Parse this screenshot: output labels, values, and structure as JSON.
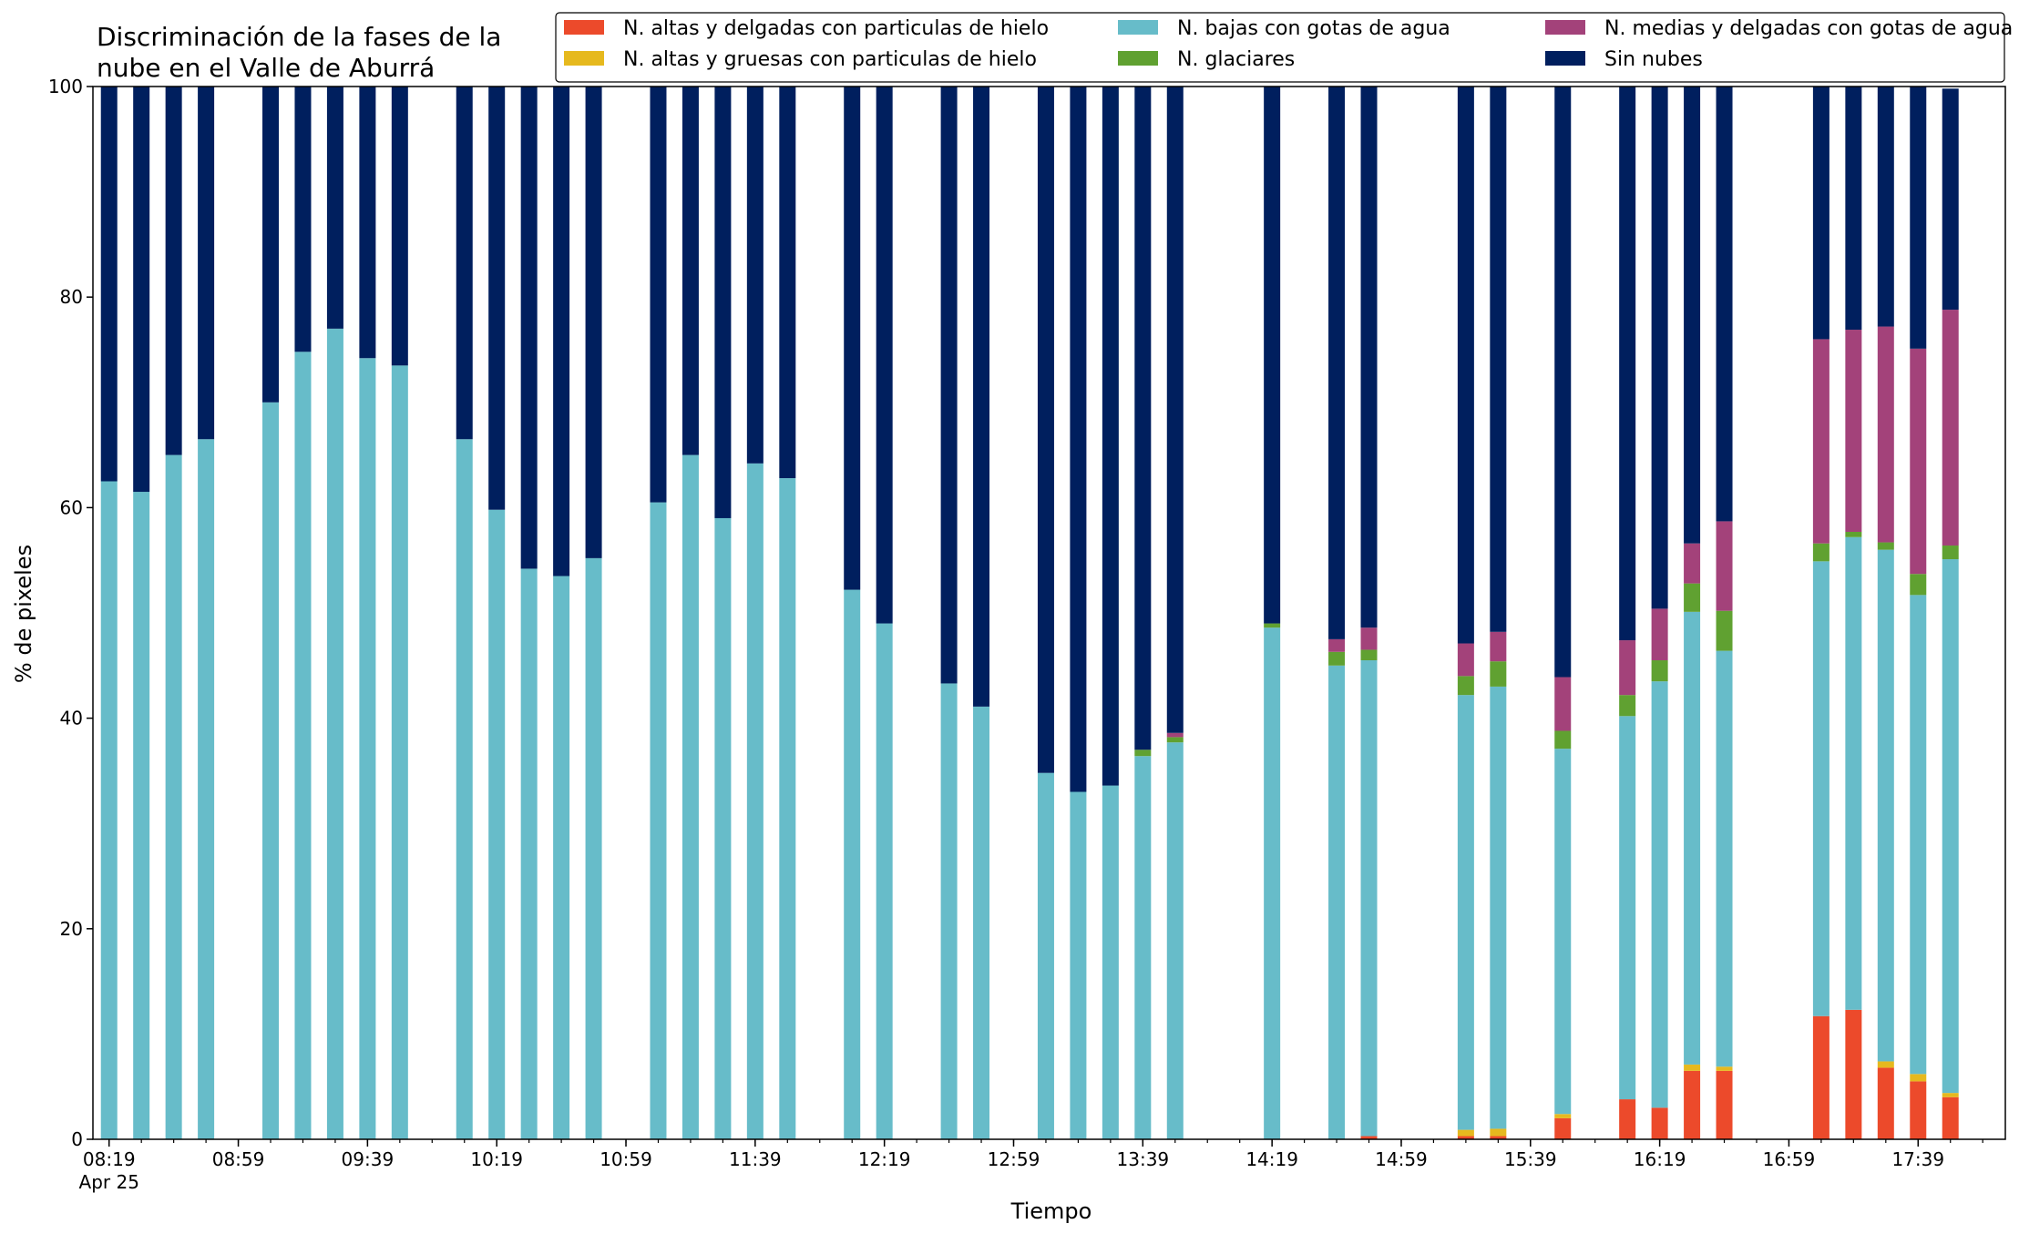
{
  "chart_data": {
    "type": "bar",
    "stacked": true,
    "title": [
      "Discriminación de la fases de la",
      "nube en el Valle de Aburrá"
    ],
    "xlabel": "Tiempo",
    "ylabel": "% de pixeles",
    "ylim": [
      0,
      100
    ],
    "yticks": [
      0,
      20,
      40,
      60,
      80,
      100
    ],
    "xlim_minutes": [
      -5,
      587
    ],
    "x_ticklabels": [
      {
        "minutes": 0,
        "label": "08:19",
        "sub": "Apr 25"
      },
      {
        "minutes": 40,
        "label": "08:59"
      },
      {
        "minutes": 80,
        "label": "09:39"
      },
      {
        "minutes": 120,
        "label": "10:19"
      },
      {
        "minutes": 160,
        "label": "10:59"
      },
      {
        "minutes": 200,
        "label": "11:39"
      },
      {
        "minutes": 240,
        "label": "12:19"
      },
      {
        "minutes": 280,
        "label": "12:59"
      },
      {
        "minutes": 320,
        "label": "13:39"
      },
      {
        "minutes": 360,
        "label": "14:19"
      },
      {
        "minutes": 400,
        "label": "14:59"
      },
      {
        "minutes": 440,
        "label": "15:39"
      },
      {
        "minutes": 480,
        "label": "16:19"
      },
      {
        "minutes": 520,
        "label": "16:59"
      },
      {
        "minutes": 560,
        "label": "17:39"
      }
    ],
    "minor_tick_step_minutes": 10,
    "grid": false,
    "legend_placement": "top-right",
    "x_times": [
      "08:19",
      "08:29",
      "08:39",
      "08:49",
      "09:09",
      "09:19",
      "09:29",
      "09:39",
      "09:49",
      "10:09",
      "10:19",
      "10:29",
      "10:39",
      "10:49",
      "11:09",
      "11:19",
      "11:29",
      "11:39",
      "11:49",
      "12:09",
      "12:19",
      "12:39",
      "12:49",
      "13:09",
      "13:19",
      "13:29",
      "13:39",
      "13:49",
      "14:19",
      "14:39",
      "14:49",
      "15:19",
      "15:29",
      "15:49",
      "16:09",
      "16:19",
      "16:29",
      "16:39",
      "17:09",
      "17:19",
      "17:29",
      "17:39",
      "17:49"
    ],
    "series": [
      {
        "name": "N. altas y delgadas con particulas de hielo",
        "color": "#ec4a2b",
        "values": [
          0,
          0,
          0,
          0,
          0,
          0,
          0,
          0,
          0,
          0,
          0,
          0,
          0,
          0,
          0,
          0,
          0,
          0,
          0,
          0,
          0,
          0,
          0,
          0,
          0,
          0,
          0,
          0,
          0,
          0,
          0.3,
          0.3,
          0.3,
          2.0,
          3.8,
          3.0,
          6.5,
          6.5,
          11.7,
          12.3,
          6.8,
          5.5,
          4.0
        ]
      },
      {
        "name": "N. altas y gruesas con particulas de hielo",
        "color": "#e6b91e",
        "values": [
          0,
          0,
          0,
          0,
          0,
          0,
          0,
          0,
          0,
          0,
          0,
          0,
          0,
          0,
          0,
          0,
          0,
          0,
          0,
          0,
          0,
          0,
          0,
          0,
          0,
          0,
          0,
          0,
          0,
          0,
          0,
          0.6,
          0.7,
          0.4,
          0,
          0,
          0.6,
          0.4,
          0,
          0,
          0.6,
          0.7,
          0.4
        ]
      },
      {
        "name": "N. bajas con gotas de agua",
        "color": "#67bcc9",
        "values": [
          62.5,
          61.5,
          65,
          66.5,
          70,
          74.8,
          77,
          74.2,
          73.5,
          66.5,
          59.8,
          54.2,
          53.5,
          55.2,
          60.5,
          65,
          59,
          64.2,
          62.8,
          52.2,
          49,
          43.3,
          41.1,
          34.8,
          33,
          33.6,
          36.4,
          37.7,
          48.6,
          45,
          45.2,
          41.3,
          42,
          34.7,
          36.4,
          40.5,
          43,
          39.5,
          43.2,
          44.9,
          48.6,
          45.5,
          50.7
        ]
      },
      {
        "name": "N. glaciares",
        "color": "#60a131",
        "values": [
          0,
          0,
          0,
          0,
          0,
          0,
          0,
          0,
          0,
          0,
          0,
          0,
          0,
          0,
          0,
          0,
          0,
          0,
          0,
          0,
          0,
          0,
          0,
          0,
          0,
          0,
          0.6,
          0.5,
          0.4,
          1.3,
          1.0,
          1.8,
          2.4,
          1.7,
          2.0,
          2.0,
          2.7,
          3.8,
          1.7,
          0.5,
          0.7,
          2.0,
          1.3
        ]
      },
      {
        "name": "N. medias y delgadas con gotas de agua",
        "color": "#a3427a",
        "values": [
          0,
          0,
          0,
          0,
          0,
          0,
          0,
          0,
          0,
          0,
          0,
          0,
          0,
          0,
          0,
          0,
          0,
          0,
          0,
          0,
          0,
          0,
          0,
          0,
          0,
          0,
          0,
          0.4,
          0,
          1.2,
          2.1,
          3.1,
          2.8,
          5.1,
          5.2,
          4.9,
          3.8,
          8.5,
          19.4,
          19.2,
          20.5,
          21.4,
          22.4
        ]
      },
      {
        "name": "Sin nubes",
        "color": "#001f5e",
        "values": [
          37.5,
          38.5,
          35,
          33.5,
          30,
          25.2,
          23,
          25.8,
          26.5,
          33.5,
          40.2,
          45.8,
          46.5,
          44.8,
          39.5,
          35,
          41,
          35.8,
          37.2,
          47.8,
          51,
          56.7,
          58.9,
          65.2,
          67,
          66.4,
          63,
          61.4,
          51,
          52.5,
          51.4,
          52.9,
          51.8,
          56.1,
          52.6,
          49.6,
          43.4,
          41.3,
          24,
          23.1,
          22.8,
          24.9,
          21
        ]
      }
    ]
  }
}
